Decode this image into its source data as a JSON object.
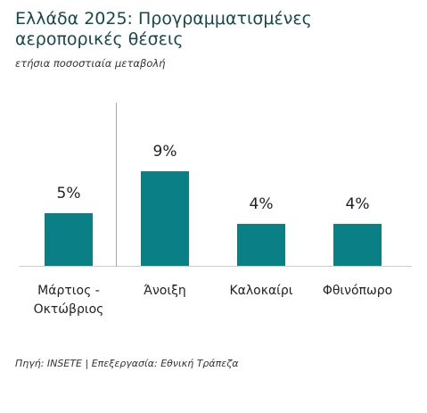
{
  "chart_data": {
    "type": "bar",
    "title": "Ελλάδα 2025: Προγραμματισμένες αεροπορικές θέσεις",
    "subtitle": "ετήσια ποσοστιαία μεταβολή",
    "categories": [
      "Μάρτιος - Οκτώβριος",
      "Άνοιξη",
      "Καλοκαίρι",
      "Φθινόπωρο"
    ],
    "values": [
      5,
      9,
      4,
      4
    ],
    "value_labels": [
      "5%",
      "9%",
      "4%",
      "4%"
    ],
    "color": "#0b7f86",
    "source": "Πηγή: INSETE | Επεξεργασία: Εθνική Τράπεζα"
  }
}
